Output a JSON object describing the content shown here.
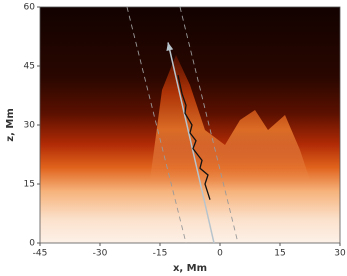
{
  "chart_data": {
    "type": "line",
    "xlabel": "x, Mm",
    "ylabel": "z, Mm",
    "xlim": [
      -45,
      30
    ],
    "ylim": [
      0,
      60
    ],
    "xticks": [
      -45,
      -30,
      -15,
      0,
      15,
      30
    ],
    "yticks": [
      0,
      15,
      30,
      45,
      60
    ],
    "series": [
      {
        "color": "#9a9a9a",
        "dash": true,
        "x": [
          -23.25,
          -8.5
        ],
        "values": [
          60,
          0
        ]
      },
      {
        "color": "#9a9a9a",
        "dash": true,
        "x": [
          -10,
          4.5
        ],
        "values": [
          60,
          0
        ]
      },
      {
        "color": "#b8c4cc",
        "arrow": true,
        "x": [
          -1.5,
          -13
        ],
        "values": [
          0,
          51
        ]
      },
      {
        "color": "#111111",
        "x": [
          -2.5,
          -3.75,
          -3,
          -5,
          -4.5,
          -6.75,
          -6,
          -7.5,
          -7,
          -8.75,
          -8.5,
          -9.5,
          -10.5
        ],
        "values": [
          11,
          15,
          17.3,
          19,
          21,
          24,
          26,
          28,
          30,
          33,
          35,
          38,
          42.7
        ]
      }
    ]
  }
}
